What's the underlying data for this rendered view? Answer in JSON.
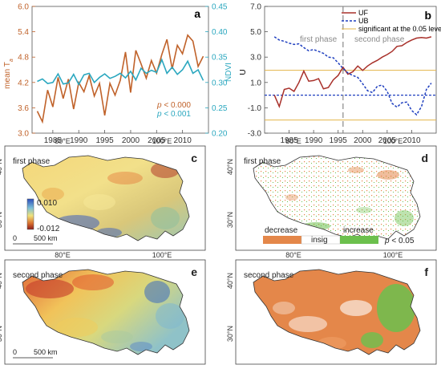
{
  "colors": {
    "temp": "#c0622a",
    "ndvi": "#2aa7bf",
    "uf": "#a8302a",
    "ub": "#1f3fbf",
    "sig": "#e3b54a",
    "dashed_divider": "#888888",
    "map_outline": "#333333",
    "decrease": "#e4874a",
    "increase": "#6cc04d",
    "low": "#8c1d1d",
    "mid": "#f0e27a",
    "high": "#2c4dbb"
  },
  "chart_data": [
    {
      "id": "a",
      "type": "line",
      "panel_label": "a",
      "x": [
        1982,
        1983,
        1984,
        1985,
        1986,
        1987,
        1988,
        1989,
        1990,
        1991,
        1992,
        1993,
        1994,
        1995,
        1996,
        1997,
        1998,
        1999,
        2000,
        2001,
        2002,
        2003,
        2004,
        2005,
        2006,
        2007,
        2008,
        2009,
        2010,
        2011,
        2012,
        2013,
        2014
      ],
      "series": [
        {
          "name": "mean Ta",
          "axis": "left",
          "values": [
            3.52,
            3.27,
            4.02,
            3.62,
            4.32,
            3.82,
            4.28,
            3.57,
            4.2,
            3.98,
            4.36,
            3.88,
            4.18,
            3.42,
            4.18,
            3.9,
            4.25,
            4.92,
            3.96,
            4.96,
            4.64,
            4.3,
            4.72,
            4.42,
            4.86,
            5.22,
            4.52,
            5.08,
            4.88,
            5.32,
            5.18,
            4.58,
            4.82
          ]
        },
        {
          "name": "NDVI",
          "axis": "right",
          "values": [
            0.302,
            0.307,
            0.298,
            0.3,
            0.317,
            0.297,
            0.299,
            0.316,
            0.296,
            0.315,
            0.318,
            0.3,
            0.31,
            0.317,
            0.308,
            0.312,
            0.318,
            0.309,
            0.322,
            0.305,
            0.328,
            0.318,
            0.324,
            0.32,
            0.345,
            0.318,
            0.33,
            0.316,
            0.325,
            0.342,
            0.318,
            0.325,
            0.304
          ]
        }
      ],
      "xticks": [
        "1985",
        "1990",
        "1995",
        "2000",
        "2005",
        "2010"
      ],
      "yticks_left": [
        "3.0",
        "3.6",
        "4.2",
        "4.8",
        "5.4",
        "6.0"
      ],
      "yticks_right": [
        "0.20",
        "0.25",
        "0.30",
        "0.35",
        "0.40",
        "0.45"
      ],
      "ylim_left": [
        3.0,
        6.0
      ],
      "ylim_right": [
        0.2,
        0.45
      ],
      "xlim": [
        1981,
        2015
      ],
      "ylabel_left_main": "mean T",
      "ylabel_left_sub": "a",
      "ylabel_right": "NDVI",
      "pval_temp_prefix": "p",
      "pval_temp_rel": " < 0.000",
      "pval_ndvi_prefix": "p",
      "pval_ndvi_rel": " < 0.001"
    },
    {
      "id": "b",
      "type": "line",
      "panel_label": "b",
      "x": [
        1982,
        1983,
        1984,
        1985,
        1986,
        1987,
        1988,
        1989,
        1990,
        1991,
        1992,
        1993,
        1994,
        1995,
        1996,
        1997,
        1998,
        1999,
        2000,
        2001,
        2002,
        2003,
        2004,
        2005,
        2006,
        2007,
        2008,
        2009,
        2010,
        2011,
        2012,
        2013,
        2014
      ],
      "series": [
        {
          "name": "UF",
          "values": [
            0.0,
            -0.9,
            0.45,
            0.55,
            0.3,
            1.0,
            1.9,
            1.1,
            1.15,
            1.3,
            0.5,
            0.6,
            1.2,
            1.55,
            2.2,
            1.65,
            1.85,
            2.3,
            1.95,
            2.3,
            2.55,
            2.75,
            3.0,
            3.2,
            3.45,
            3.85,
            3.9,
            4.15,
            4.35,
            4.5,
            4.55,
            4.5,
            4.6
          ]
        },
        {
          "name": "UB",
          "values": [
            4.6,
            4.35,
            4.25,
            4.1,
            4.0,
            4.05,
            3.75,
            3.5,
            3.6,
            3.45,
            3.3,
            3.0,
            2.95,
            2.55,
            2.1,
            1.75,
            1.55,
            1.4,
            0.9,
            0.35,
            0.2,
            0.7,
            0.8,
            0.3,
            -0.65,
            -0.95,
            -0.6,
            -0.55,
            -1.2,
            -1.55,
            -0.9,
            0.45,
            0.95
          ]
        }
      ],
      "sig_level": 1.96,
      "sig_legend": "significant at the 0.05 level",
      "divider_year": 1996,
      "phase1_label": "first phase",
      "phase2_label": "second phase",
      "xticks": [
        "1985",
        "1990",
        "1995",
        "2000",
        "2005",
        "2010"
      ],
      "yticks": [
        "-3.0",
        "-1.0",
        "1.0",
        "3.0",
        "5.0",
        "7.0"
      ],
      "ylim": [
        -3.0,
        7.0
      ],
      "xlim": [
        1980,
        2015
      ],
      "ylabel": "U"
    }
  ],
  "maps": {
    "lon_labels": [
      "80°E",
      "100°E"
    ],
    "lat_labels": [
      "40°N",
      "30°N"
    ],
    "scalebar_zero": "0",
    "scalebar_text": "500 km",
    "panel_c_label": "c",
    "panel_c_title": "first phase",
    "panel_d_label": "d",
    "panel_d_title": "first phase",
    "panel_e_label": "e",
    "panel_e_title": "second phase",
    "panel_f_label": "f",
    "panel_f_title": "second phase",
    "colorbar_max": "0.010",
    "colorbar_min": "-0.012",
    "legend_decrease": "decrease",
    "legend_insig": "insig",
    "legend_increase": "increase",
    "legend_p_prefix": "p",
    "legend_p_rel": " < 0.05"
  }
}
